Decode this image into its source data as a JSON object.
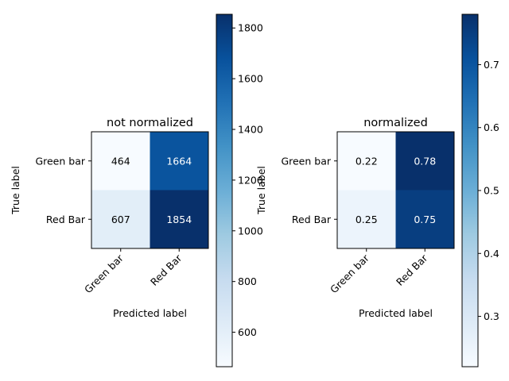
{
  "chart_data": [
    {
      "type": "heatmap",
      "title": "not normalized",
      "xlabel": "Predicted label",
      "ylabel": "True label",
      "x_categories": [
        "Green bar",
        "Red Bar"
      ],
      "y_categories": [
        "Green bar",
        "Red Bar"
      ],
      "values": [
        [
          464,
          1664
        ],
        [
          607,
          1854
        ]
      ],
      "cell_labels": [
        [
          "464",
          "1664"
        ],
        [
          "607",
          "1854"
        ]
      ],
      "colormap": "Blues",
      "vmin": 464,
      "vmax": 1854,
      "colorbar_ticks": [
        600,
        800,
        1000,
        1200,
        1400,
        1600,
        1800
      ],
      "colorbar_tick_labels": [
        "600",
        "800",
        "1000",
        "1200",
        "1400",
        "1600",
        "1800"
      ],
      "grid": false
    },
    {
      "type": "heatmap",
      "title": "normalized",
      "xlabel": "Predicted label",
      "ylabel": "True label",
      "x_categories": [
        "Green bar",
        "Red Bar"
      ],
      "y_categories": [
        "Green bar",
        "Red Bar"
      ],
      "values": [
        [
          0.22,
          0.78
        ],
        [
          0.25,
          0.75
        ]
      ],
      "cell_labels": [
        [
          "0.22",
          "0.78"
        ],
        [
          "0.25",
          "0.75"
        ]
      ],
      "colormap": "Blues",
      "vmin": 0.22,
      "vmax": 0.78,
      "colorbar_ticks": [
        0.3,
        0.4,
        0.5,
        0.6,
        0.7
      ],
      "colorbar_tick_labels": [
        "0.3",
        "0.4",
        "0.5",
        "0.6",
        "0.7"
      ],
      "grid": false
    }
  ]
}
